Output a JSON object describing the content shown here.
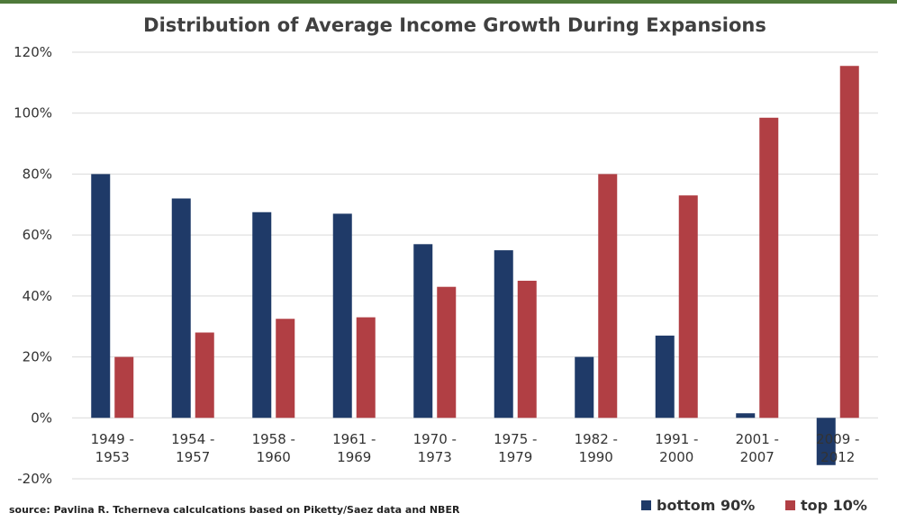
{
  "chart_data": {
    "type": "bar",
    "title": "Distribution of Average Income Growth During Expansions",
    "categories": [
      [
        "1949 -",
        "1953"
      ],
      [
        "1954 -",
        "1957"
      ],
      [
        "1958 -",
        "1960"
      ],
      [
        "1961 -",
        "1969"
      ],
      [
        "1970 -",
        "1973"
      ],
      [
        "1975 -",
        "1979"
      ],
      [
        "1982 -",
        "1990"
      ],
      [
        "1991 -",
        "2000"
      ],
      [
        "2001 -",
        "2007"
      ],
      [
        "2009 -",
        "2012"
      ]
    ],
    "series": [
      {
        "name": "bottom 90%",
        "color": "#1f3a68",
        "values": [
          80,
          72,
          67.5,
          67,
          57,
          55,
          20,
          27,
          1.5,
          -15.5
        ]
      },
      {
        "name": "top 10%",
        "color": "#b13f44",
        "values": [
          20,
          28,
          32.5,
          33,
          43,
          45,
          80,
          73,
          98.5,
          115.5
        ]
      }
    ],
    "ylim": [
      -20,
      120
    ],
    "yticks": [
      -20,
      0,
      20,
      40,
      60,
      80,
      100,
      120
    ],
    "ytick_suffix": "%",
    "grid": true,
    "legend_position": "bottom-right",
    "source": "source: Pavlina R. Tcherneva calculcations based on Piketty/Saez data and NBER"
  },
  "colors": {
    "top_strip": "#4f7a3a",
    "grid": "#d9d9d9",
    "axis_text": "#333333",
    "title": "#404040"
  }
}
